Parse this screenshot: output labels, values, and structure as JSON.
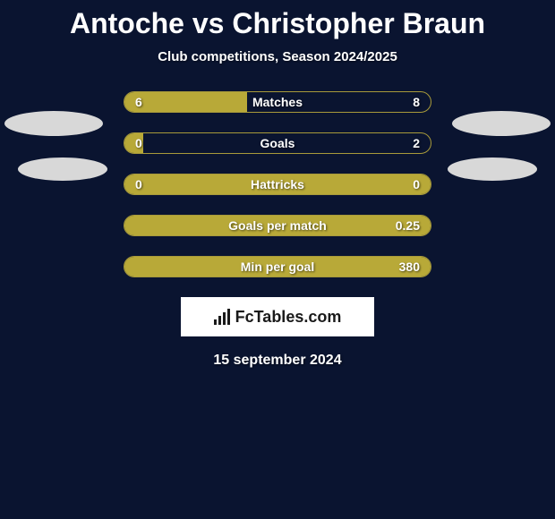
{
  "title": "Antoche vs Christopher Braun",
  "subtitle": "Club competitions, Season 2024/2025",
  "date": "15 september 2024",
  "logo": "FcTables.com",
  "colors": {
    "background": "#0a1430",
    "bar_fill": "#b8a938",
    "bar_border": "#a89a3a",
    "ellipse": "#d8d8d8",
    "text": "#ffffff"
  },
  "rows": [
    {
      "label": "Matches",
      "left": "6",
      "right": "8",
      "left_pct": 40
    },
    {
      "label": "Goals",
      "left": "0",
      "right": "2",
      "left_pct": 6
    },
    {
      "label": "Hattricks",
      "left": "0",
      "right": "0",
      "left_pct": 100
    },
    {
      "label": "Goals per match",
      "left": "",
      "right": "0.25",
      "left_pct": 100
    },
    {
      "label": "Min per goal",
      "left": "",
      "right": "380",
      "left_pct": 100
    }
  ]
}
